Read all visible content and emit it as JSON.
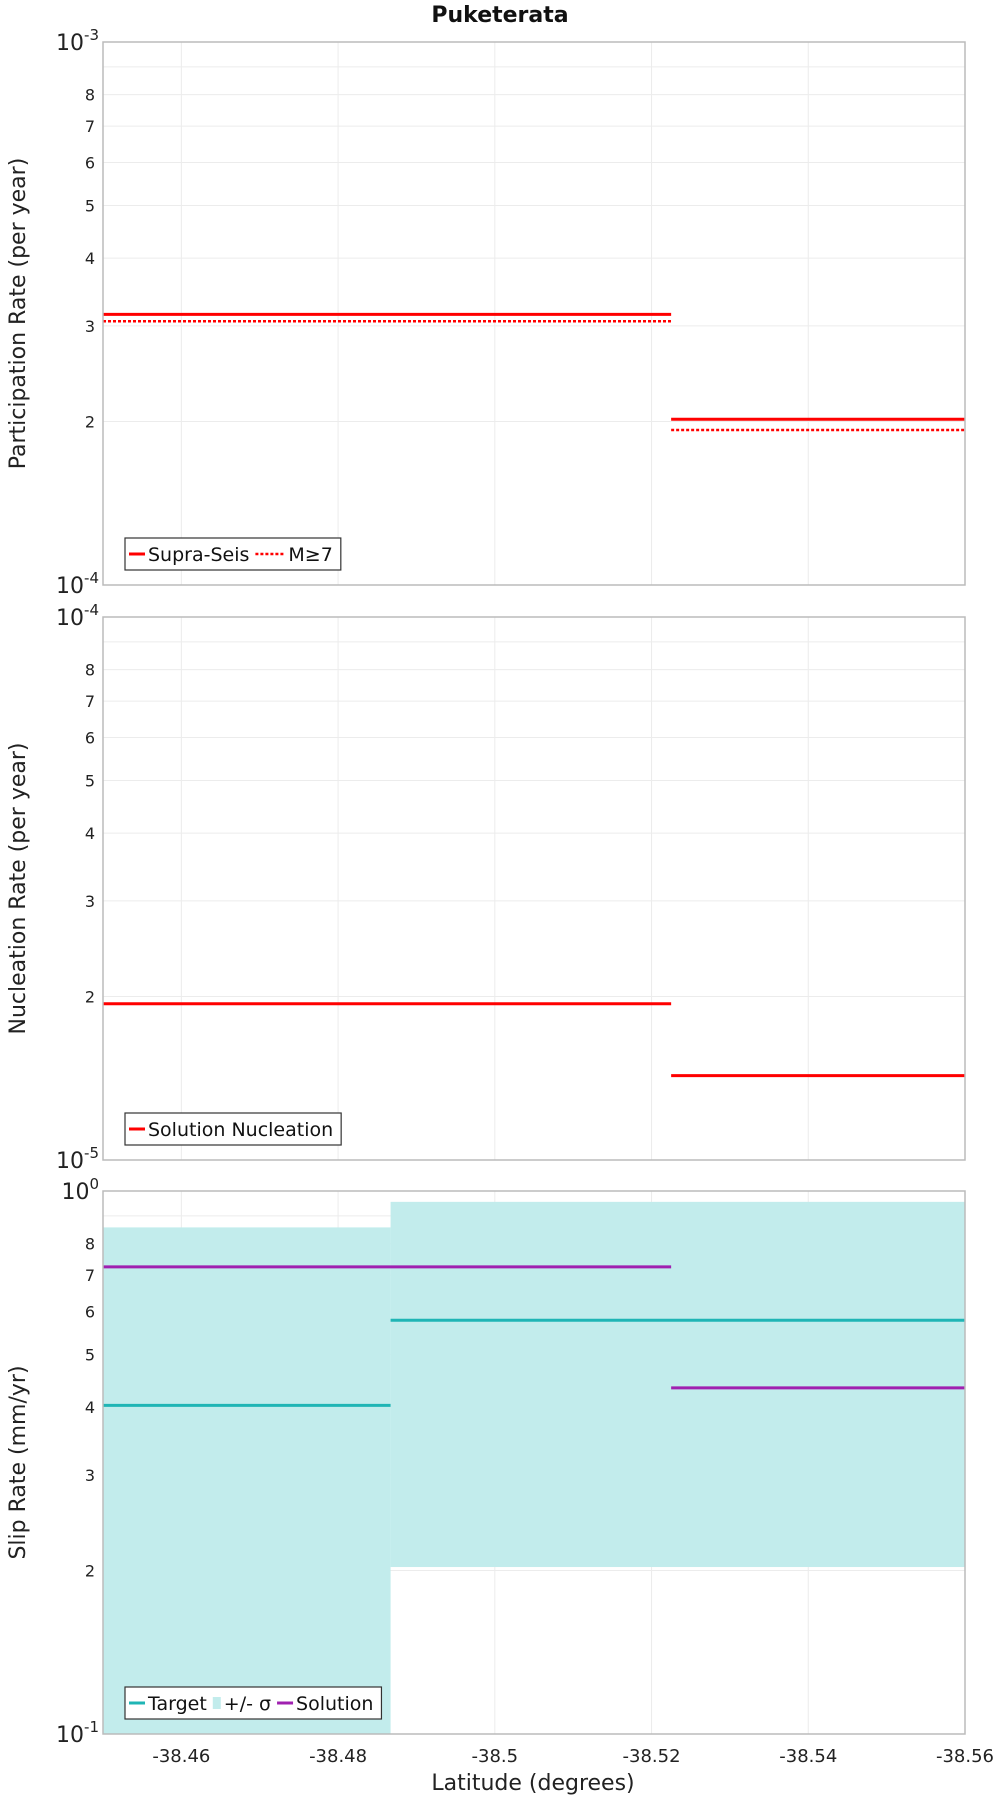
{
  "chart_data": [
    {
      "type": "line",
      "title": "Puketerata",
      "ylabel": "Participation Rate (per year)",
      "xlabel": "",
      "xlim": [
        -38.45,
        -38.56
      ],
      "ylim": [
        0.0001,
        0.001
      ],
      "yscale": "log",
      "grid": true,
      "legend_position": "bottom-left",
      "series": [
        {
          "name": "Supra-Seis",
          "color": "#ff0000",
          "style": "solid",
          "segments": [
            {
              "x": [
                -38.45,
                -38.5225
              ],
              "y": 0.000315
            },
            {
              "x": [
                -38.5225,
                -38.56
              ],
              "y": 0.000202
            }
          ]
        },
        {
          "name": "M≥7",
          "color": "#ff0000",
          "style": "dotted",
          "segments": [
            {
              "x": [
                -38.45,
                -38.5225
              ],
              "y": 0.000306
            },
            {
              "x": [
                -38.5225,
                -38.56
              ],
              "y": 0.000193
            }
          ]
        }
      ]
    },
    {
      "type": "line",
      "title": "",
      "ylabel": "Nucleation Rate (per year)",
      "xlabel": "",
      "xlim": [
        -38.45,
        -38.56
      ],
      "ylim": [
        1e-05,
        0.0001
      ],
      "yscale": "log",
      "grid": true,
      "legend_position": "bottom-left",
      "series": [
        {
          "name": "Solution Nucleation",
          "color": "#ff0000",
          "style": "solid",
          "segments": [
            {
              "x": [
                -38.45,
                -38.5225
              ],
              "y": 1.94e-05
            },
            {
              "x": [
                -38.5225,
                -38.56
              ],
              "y": 1.43e-05
            }
          ]
        }
      ]
    },
    {
      "type": "line",
      "title": "",
      "ylabel": "Slip Rate (mm/yr)",
      "xlabel": "Latitude (degrees)",
      "xlim": [
        -38.45,
        -38.56
      ],
      "ylim": [
        0.1,
        1
      ],
      "yscale": "log",
      "grid": true,
      "legend_position": "bottom-left",
      "bands": [
        {
          "name": "+/- σ",
          "color": "#c2ecec",
          "segments": [
            {
              "x": [
                -38.45,
                -38.4867
              ],
              "low": 0.1,
              "high": 0.857
            },
            {
              "x": [
                -38.4867,
                -38.56
              ],
              "low": 0.203,
              "high": 0.955
            }
          ]
        }
      ],
      "series": [
        {
          "name": "Target",
          "color": "#1fb5b5",
          "style": "solid",
          "segments": [
            {
              "x": [
                -38.45,
                -38.4867
              ],
              "y": 0.403
            },
            {
              "x": [
                -38.4867,
                -38.56
              ],
              "y": 0.578
            }
          ]
        },
        {
          "name": "Solution",
          "color": "#a020b0",
          "style": "solid",
          "segments": [
            {
              "x": [
                -38.45,
                -38.5225
              ],
              "y": 0.725
            },
            {
              "x": [
                -38.5225,
                -38.56
              ],
              "y": 0.434
            }
          ]
        }
      ]
    }
  ],
  "x_ticks": [
    -38.46,
    -38.48,
    -38.5,
    -38.52,
    -38.54,
    -38.56
  ],
  "x_tick_labels": [
    "-38.46",
    "-38.48",
    "-38.5",
    "-38.52",
    "-38.54",
    "-38.56"
  ],
  "y_ticks": [
    {
      "major_bottom": {
        "mantissa": "10",
        "exp": "-4"
      },
      "major_top": {
        "mantissa": "10",
        "exp": "-3"
      }
    },
    {
      "major_bottom": {
        "mantissa": "10",
        "exp": "-5"
      },
      "major_top": {
        "mantissa": "10",
        "exp": "-4"
      }
    },
    {
      "major_bottom": {
        "mantissa": "10",
        "exp": "-1"
      },
      "major_top": {
        "mantissa": "10",
        "exp": "0"
      }
    }
  ],
  "y_minor_labels": [
    "2",
    "3",
    "4",
    "5",
    "6",
    "7",
    "8"
  ]
}
